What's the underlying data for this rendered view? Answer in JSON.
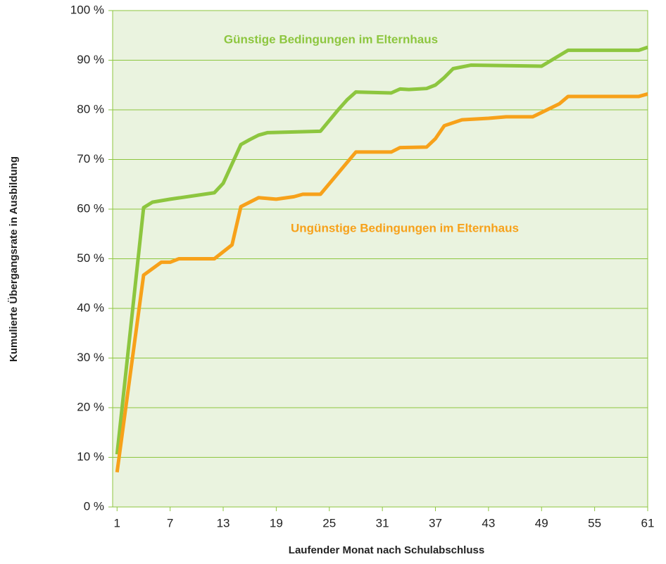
{
  "chart_data": {
    "type": "line",
    "xlabel": "Laufender Monat nach Schulabschluss",
    "ylabel": "Kumulierte Übergangsrate in Ausbildung",
    "xlim": [
      0.5,
      61
    ],
    "xticks": [
      1,
      7,
      13,
      19,
      25,
      31,
      37,
      43,
      49,
      55,
      61
    ],
    "ylim": [
      0,
      100
    ],
    "yticks": [
      {
        "value": 0,
        "label": "0 %"
      },
      {
        "value": 10,
        "label": "10 %"
      },
      {
        "value": 20,
        "label": "20 %"
      },
      {
        "value": 30,
        "label": "30 %"
      },
      {
        "value": 40,
        "label": "40 %"
      },
      {
        "value": 50,
        "label": "50 %"
      },
      {
        "value": 60,
        "label": "60 %"
      },
      {
        "value": 70,
        "label": "70 %"
      },
      {
        "value": 80,
        "label": "80 %"
      },
      {
        "value": 90,
        "label": "90 %"
      },
      {
        "value": 100,
        "label": "100 %"
      }
    ],
    "grid": true,
    "background": "#eaf3df",
    "grid_color": "#8dc63f",
    "series": [
      {
        "name": "Günstige Bedingungen im Elternhaus",
        "color": "#8dc63f",
        "x": [
          1,
          4,
          5,
          7,
          12,
          13,
          15,
          16,
          17,
          18,
          24,
          26,
          27,
          28,
          32,
          33,
          34,
          36,
          37,
          38,
          39,
          41,
          49,
          52,
          60,
          61
        ],
        "values": [
          10.6,
          60.3,
          61.4,
          62,
          63.3,
          65.2,
          73,
          74,
          74.9,
          75.4,
          75.7,
          80,
          82,
          83.6,
          83.4,
          84.2,
          84.1,
          84.3,
          85,
          86.5,
          88.3,
          89,
          88.8,
          92,
          92,
          92.6
        ]
      },
      {
        "name": "Ungünstige Bedingungen im Elternhaus",
        "color": "#f7a11a",
        "x": [
          1,
          4,
          6,
          7,
          8,
          12,
          14,
          15,
          17,
          19,
          21,
          22,
          24,
          28,
          32,
          33,
          36,
          37,
          38,
          40,
          43,
          45,
          48,
          51,
          52,
          60,
          61
        ],
        "values": [
          7,
          46.7,
          49.3,
          49.3,
          50,
          50,
          52.8,
          60.5,
          62.3,
          62,
          62.5,
          63,
          63,
          71.5,
          71.5,
          72.4,
          72.5,
          74.2,
          76.8,
          78,
          78.3,
          78.6,
          78.6,
          81.2,
          82.7,
          82.7,
          83.2
        ]
      }
    ]
  }
}
